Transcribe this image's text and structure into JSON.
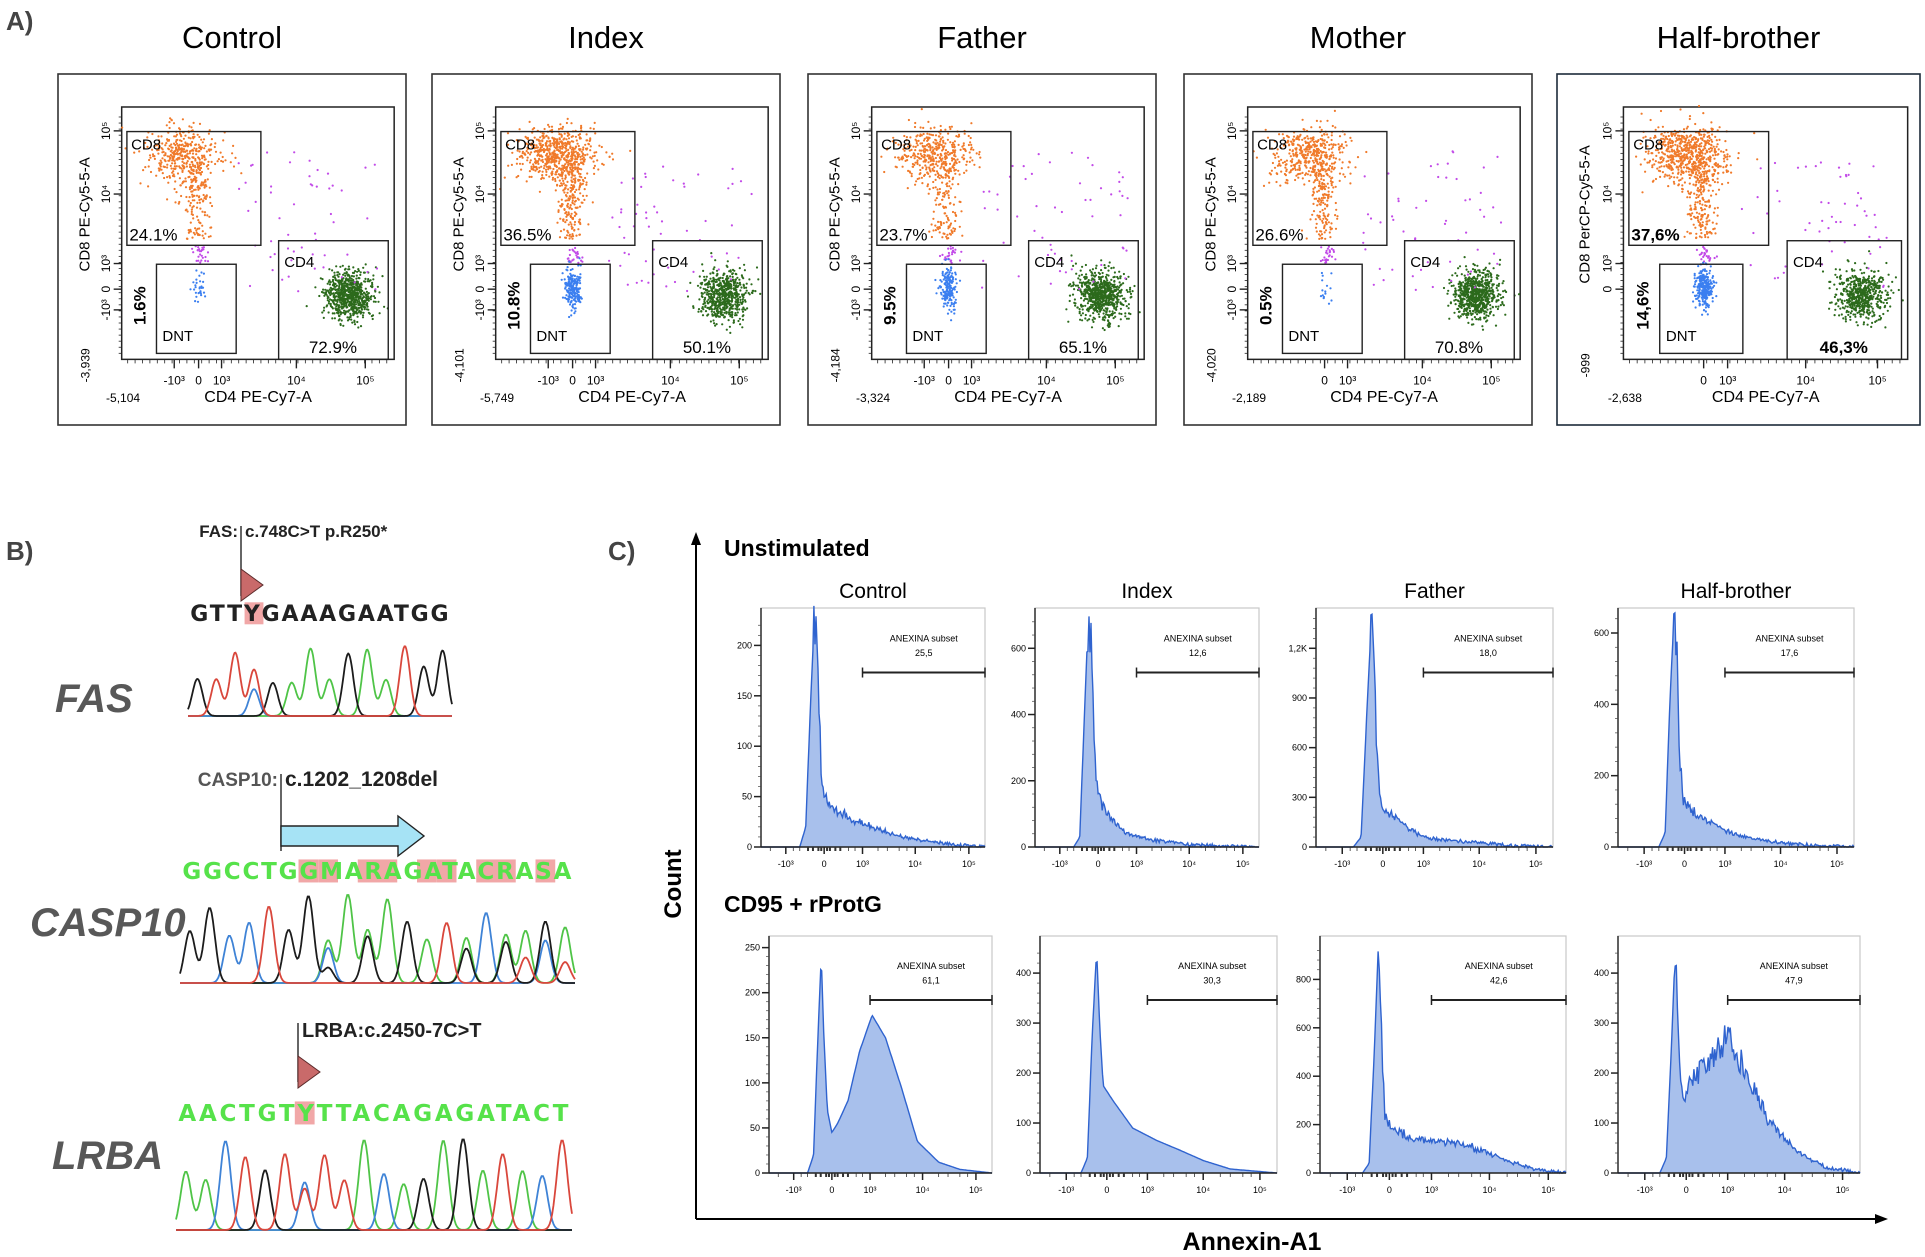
{
  "figure": {
    "panel_a_label": "A)",
    "panel_b_label": "B)",
    "panel_c_label": "C)"
  },
  "colors": {
    "cd8_events": "#f07a2a",
    "cd4_events": "#2c6a1c",
    "dnt_events": "#3b7ff0",
    "other_events": "#c24ae8",
    "histogram_fill": "#a8c0ec",
    "histogram_line": "#2f63cf",
    "base_A": "#4fc447",
    "base_C": "#3f83d6",
    "base_G": "#1c1c1c",
    "base_T": "#d9473c",
    "sequence_green": "#56e24a",
    "highlight": "#f1a7a7",
    "arrow_fill": "#a6e3f5"
  },
  "panel_c": {
    "y_axis_label": "Count",
    "x_axis_label": "Annexin-A1",
    "rows": [
      "Unstimulated",
      "CD95 + rProtG"
    ]
  },
  "panel_b": {
    "genes": [
      {
        "gene": "FAS",
        "variant_prefix": "FAS:",
        "variant": "c.748C>T p.R250*",
        "sequence": "GTTYGAAAGAATGG",
        "highlighted": [
          3
        ],
        "marker": "triangle"
      },
      {
        "gene": "CASP10",
        "variant_prefix": "CASP10:",
        "variant": "c.1202_1208del",
        "sequence": "GGCCTGGMARAGATACRASA",
        "highlighted": [
          6,
          7,
          9,
          10,
          12,
          13,
          15,
          16,
          18
        ],
        "marker": "arrow"
      },
      {
        "gene": "LRBA",
        "variant_prefix": "",
        "variant": "LRBA:c.2450-7C>T",
        "sequence": "AACTGTYTTACAGAGATACT",
        "highlighted": [
          6
        ],
        "marker": "triangle"
      }
    ]
  },
  "chart_data": [
    {
      "type": "scatter",
      "panel": "A",
      "title": "Control",
      "xlabel": "CD4 PE-Cy7-A",
      "ylabel": "CD8 PE-Cy5-5-A",
      "x_min_label": "-5,104",
      "y_min_label": "-3,939",
      "x_ticks": [
        "-10³",
        "0",
        "10³",
        "10⁴",
        "10⁵"
      ],
      "y_ticks": [
        "10⁵",
        "10⁴",
        "10³",
        "0",
        "-10³"
      ],
      "bold_percents": false,
      "gates": [
        {
          "name": "CD8",
          "percent": "24.1%"
        },
        {
          "name": "DNT",
          "percent": "1.6%"
        },
        {
          "name": "CD4",
          "percent": "72.9%"
        }
      ]
    },
    {
      "type": "scatter",
      "panel": "A",
      "title": "Index",
      "xlabel": "CD4 PE-Cy7-A",
      "ylabel": "CD8 PE-Cy5-5-A",
      "x_min_label": "-5,749",
      "y_min_label": "-4,101",
      "x_ticks": [
        "-10³",
        "0",
        "10³",
        "10⁴",
        "10⁵"
      ],
      "y_ticks": [
        "10⁵",
        "10⁴",
        "10³",
        "0",
        "-10³"
      ],
      "bold_percents": false,
      "gates": [
        {
          "name": "CD8",
          "percent": "36.5%"
        },
        {
          "name": "DNT",
          "percent": "10.8%"
        },
        {
          "name": "CD4",
          "percent": "50.1%"
        }
      ]
    },
    {
      "type": "scatter",
      "panel": "A",
      "title": "Father",
      "xlabel": "CD4 PE-Cy7-A",
      "ylabel": "CD8 PE-Cy5-5-A",
      "x_min_label": "-3,324",
      "y_min_label": "-4,184",
      "x_ticks": [
        "-10³",
        "0",
        "10³",
        "10⁴",
        "10⁵"
      ],
      "y_ticks": [
        "10⁵",
        "10⁴",
        "10³",
        "0",
        "-10³"
      ],
      "bold_percents": false,
      "gates": [
        {
          "name": "CD8",
          "percent": "23.7%"
        },
        {
          "name": "DNT",
          "percent": "9.5%"
        },
        {
          "name": "CD4",
          "percent": "65.1%"
        }
      ]
    },
    {
      "type": "scatter",
      "panel": "A",
      "title": "Mother",
      "xlabel": "CD4 PE-Cy7-A",
      "ylabel": "CD8 PE-Cy5-5-A",
      "x_min_label": "-2,189",
      "y_min_label": "-4,020",
      "x_ticks": [
        "0",
        "10³",
        "10⁴",
        "10⁵"
      ],
      "y_ticks": [
        "10⁵",
        "10⁴",
        "10³",
        "0",
        "-10³"
      ],
      "bold_percents": false,
      "gates": [
        {
          "name": "CD8",
          "percent": "26.6%"
        },
        {
          "name": "DNT",
          "percent": "0.5%"
        },
        {
          "name": "CD4",
          "percent": "70.8%"
        }
      ]
    },
    {
      "type": "scatter",
      "panel": "A",
      "title": "Half-brother",
      "xlabel": "CD4 PE-Cy7-A",
      "ylabel": "CD8 PerCP-Cy5-5-A",
      "x_min_label": "-2,638",
      "y_min_label": "-999",
      "x_ticks": [
        "0",
        "10³",
        "10⁴",
        "10⁵"
      ],
      "y_ticks": [
        "10⁵",
        "10⁴",
        "10³",
        "0"
      ],
      "bold_percents": true,
      "gates": [
        {
          "name": "CD8",
          "percent": "37,6%"
        },
        {
          "name": "DNT",
          "percent": "14,6%"
        },
        {
          "name": "CD4",
          "percent": "46,3%"
        }
      ]
    },
    {
      "type": "area",
      "panel": "C",
      "row": "Unstimulated",
      "title": "Control",
      "gate_label": "ANEXINA subset",
      "gate_value": "25,5",
      "xlim": [
        -3000,
        200000
      ],
      "ylim": [
        0,
        230
      ],
      "y_ticks": [
        0,
        50,
        100,
        150,
        200
      ],
      "y_tick_labels": [
        "0",
        "50",
        "100",
        "150",
        "200"
      ],
      "x_ticks": [
        "-10³",
        "0",
        "10³",
        "10⁴",
        "10⁵"
      ],
      "points": [
        [
          -3000,
          0
        ],
        [
          -500,
          0
        ],
        [
          -350,
          20
        ],
        [
          -250,
          140
        ],
        [
          -180,
          218
        ],
        [
          -130,
          220
        ],
        [
          -90,
          150
        ],
        [
          -50,
          70
        ],
        [
          0,
          50
        ],
        [
          150,
          38
        ],
        [
          400,
          32
        ],
        [
          800,
          25
        ],
        [
          1500,
          20
        ],
        [
          3000,
          15
        ],
        [
          6000,
          10
        ],
        [
          15000,
          6
        ],
        [
          40000,
          3
        ],
        [
          100000,
          1
        ],
        [
          200000,
          0
        ]
      ]
    },
    {
      "type": "area",
      "panel": "C",
      "row": "Unstimulated",
      "title": "Index",
      "gate_label": "ANEXINA subset",
      "gate_value": "12,6",
      "xlim": [
        -3000,
        200000
      ],
      "ylim": [
        0,
        700
      ],
      "y_ticks": [
        0,
        200,
        400,
        600
      ],
      "y_tick_labels": [
        "0",
        "200",
        "400",
        "600"
      ],
      "x_ticks": [
        "-10³",
        "0",
        "10³",
        "10⁴",
        "10⁵"
      ],
      "points": [
        [
          -3000,
          0
        ],
        [
          -500,
          0
        ],
        [
          -350,
          30
        ],
        [
          -250,
          400
        ],
        [
          -180,
          670
        ],
        [
          -130,
          640
        ],
        [
          -80,
          380
        ],
        [
          -30,
          200
        ],
        [
          50,
          130
        ],
        [
          200,
          90
        ],
        [
          500,
          50
        ],
        [
          1000,
          30
        ],
        [
          3000,
          18
        ],
        [
          10000,
          8
        ],
        [
          40000,
          3
        ],
        [
          200000,
          0
        ]
      ]
    },
    {
      "type": "area",
      "panel": "C",
      "row": "Unstimulated",
      "title": "Father",
      "gate_label": "ANEXINA subset",
      "gate_value": "18,0",
      "xlim": [
        -3000,
        200000
      ],
      "ylim": [
        0,
        1400
      ],
      "y_ticks": [
        0,
        300,
        600,
        900,
        1200
      ],
      "y_tick_labels": [
        "0",
        "300",
        "600",
        "900",
        "1,2K"
      ],
      "x_ticks": [
        "-10³",
        "0",
        "10³",
        "10⁴",
        "10⁵"
      ],
      "points": [
        [
          -3000,
          0
        ],
        [
          -600,
          0
        ],
        [
          -400,
          60
        ],
        [
          -280,
          800
        ],
        [
          -200,
          1320
        ],
        [
          -150,
          1200
        ],
        [
          -100,
          600
        ],
        [
          -50,
          300
        ],
        [
          0,
          230
        ],
        [
          200,
          180
        ],
        [
          500,
          110
        ],
        [
          1000,
          60
        ],
        [
          3000,
          40
        ],
        [
          10000,
          25
        ],
        [
          40000,
          8
        ],
        [
          200000,
          0
        ]
      ]
    },
    {
      "type": "area",
      "panel": "C",
      "row": "Unstimulated",
      "title": "Half-brother",
      "gate_label": "ANEXINA subset",
      "gate_value": "17,6",
      "xlim": [
        -3000,
        200000
      ],
      "ylim": [
        0,
        650
      ],
      "y_ticks": [
        0,
        200,
        400,
        600
      ],
      "y_tick_labels": [
        "0",
        "200",
        "400",
        "600"
      ],
      "x_ticks": [
        "-10³",
        "0",
        "10³",
        "10⁴",
        "10⁵"
      ],
      "points": [
        [
          -3000,
          0
        ],
        [
          -500,
          0
        ],
        [
          -350,
          40
        ],
        [
          -250,
          420
        ],
        [
          -180,
          635
        ],
        [
          -130,
          560
        ],
        [
          -80,
          250
        ],
        [
          -20,
          130
        ],
        [
          150,
          100
        ],
        [
          500,
          70
        ],
        [
          1000,
          45
        ],
        [
          3000,
          25
        ],
        [
          10000,
          12
        ],
        [
          40000,
          4
        ],
        [
          200000,
          0
        ]
      ]
    },
    {
      "type": "area",
      "panel": "C",
      "row": "CD95 + rProtG",
      "title": "",
      "gate_label": "ANEXINA subset",
      "gate_value": "61,1",
      "xlim": [
        -3000,
        200000
      ],
      "ylim": [
        0,
        255
      ],
      "y_ticks": [
        0,
        50,
        100,
        150,
        200,
        250
      ],
      "y_tick_labels": [
        "0",
        "50",
        "100",
        "150",
        "200",
        "250"
      ],
      "x_ticks": [
        "-10³",
        "0",
        "10³",
        "10⁴",
        "10⁵"
      ],
      "points": [
        [
          -3000,
          0
        ],
        [
          -500,
          0
        ],
        [
          -350,
          20
        ],
        [
          -250,
          160
        ],
        [
          -190,
          240
        ],
        [
          -140,
          150
        ],
        [
          -80,
          70
        ],
        [
          0,
          45
        ],
        [
          100,
          55
        ],
        [
          300,
          80
        ],
        [
          600,
          135
        ],
        [
          1100,
          175
        ],
        [
          2000,
          150
        ],
        [
          4000,
          95
        ],
        [
          8000,
          35
        ],
        [
          20000,
          12
        ],
        [
          50000,
          4
        ],
        [
          200000,
          0
        ]
      ]
    },
    {
      "type": "area",
      "panel": "C",
      "row": "CD95 + rProtG",
      "title": "",
      "gate_label": "ANEXINA subset",
      "gate_value": "30,3",
      "xlim": [
        -3000,
        200000
      ],
      "ylim": [
        0,
        460
      ],
      "y_ticks": [
        0,
        100,
        200,
        300,
        400
      ],
      "y_tick_labels": [
        "0",
        "100",
        "200",
        "300",
        "400"
      ],
      "x_ticks": [
        "-10³",
        "0",
        "10³",
        "10⁴",
        "10⁵"
      ],
      "points": [
        [
          -3000,
          0
        ],
        [
          -500,
          0
        ],
        [
          -350,
          30
        ],
        [
          -250,
          280
        ],
        [
          -170,
          445
        ],
        [
          -120,
          300
        ],
        [
          -60,
          175
        ],
        [
          100,
          145
        ],
        [
          500,
          90
        ],
        [
          1500,
          65
        ],
        [
          4000,
          45
        ],
        [
          10000,
          25
        ],
        [
          30000,
          8
        ],
        [
          200000,
          0
        ]
      ]
    },
    {
      "type": "area",
      "panel": "C",
      "row": "CD95 + rProtG",
      "title": "",
      "gate_label": "ANEXINA subset",
      "gate_value": "42,6",
      "xlim": [
        -3000,
        200000
      ],
      "ylim": [
        0,
        950
      ],
      "y_ticks": [
        0,
        200,
        400,
        600,
        800
      ],
      "y_tick_labels": [
        "0",
        "200",
        "400",
        "600",
        "800"
      ],
      "x_ticks": [
        "-10³",
        "0",
        "10³",
        "10⁴",
        "10⁵"
      ],
      "points": [
        [
          -3000,
          0
        ],
        [
          -500,
          0
        ],
        [
          -350,
          40
        ],
        [
          -250,
          500
        ],
        [
          -180,
          920
        ],
        [
          -130,
          600
        ],
        [
          -70,
          230
        ],
        [
          50,
          190
        ],
        [
          300,
          150
        ],
        [
          1000,
          130
        ],
        [
          3000,
          125
        ],
        [
          8000,
          90
        ],
        [
          20000,
          50
        ],
        [
          60000,
          15
        ],
        [
          200000,
          0
        ]
      ]
    },
    {
      "type": "area",
      "panel": "C",
      "row": "CD95 + rProtG",
      "title": "",
      "gate_label": "ANEXINA subset",
      "gate_value": "47,9",
      "xlim": [
        -3000,
        200000
      ],
      "ylim": [
        0,
        460
      ],
      "y_ticks": [
        0,
        100,
        200,
        300,
        400
      ],
      "y_tick_labels": [
        "0",
        "100",
        "200",
        "300",
        "400"
      ],
      "x_ticks": [
        "-10³",
        "0",
        "10³",
        "10⁴",
        "10⁵"
      ],
      "points": [
        [
          -3000,
          0
        ],
        [
          -500,
          0
        ],
        [
          -350,
          30
        ],
        [
          -250,
          250
        ],
        [
          -180,
          450
        ],
        [
          -130,
          260
        ],
        [
          -60,
          140
        ],
        [
          100,
          190
        ],
        [
          400,
          220
        ],
        [
          1000,
          275
        ],
        [
          2000,
          210
        ],
        [
          5000,
          110
        ],
        [
          15000,
          45
        ],
        [
          50000,
          12
        ],
        [
          200000,
          0
        ]
      ]
    }
  ]
}
